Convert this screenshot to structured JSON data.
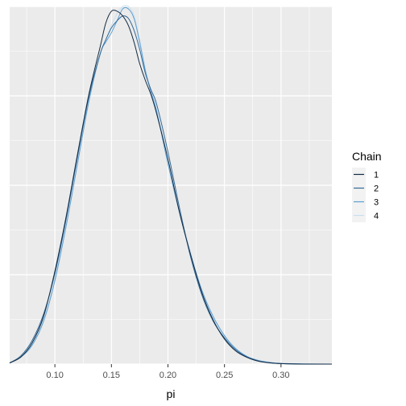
{
  "chart_data": {
    "type": "line",
    "xlabel": "pi",
    "ylabel": "",
    "xlim": [
      0.06,
      0.345
    ],
    "ylim": [
      0,
      15
    ],
    "x_ticks": [
      0.1,
      0.15,
      0.2,
      0.25,
      0.3
    ],
    "x_tick_labels": [
      "0.10",
      "0.15",
      "0.20",
      "0.25",
      "0.30"
    ],
    "y_tick_labels_shown": false,
    "grid": true,
    "legend": {
      "title": "Chain",
      "position": "right"
    },
    "series": [
      {
        "name": "1",
        "color": "#132b43",
        "x": [
          0.06,
          0.07,
          0.08,
          0.09,
          0.1,
          0.11,
          0.12,
          0.13,
          0.14,
          0.145,
          0.15,
          0.155,
          0.16,
          0.165,
          0.17,
          0.175,
          0.18,
          0.185,
          0.19,
          0.2,
          0.21,
          0.22,
          0.23,
          0.24,
          0.25,
          0.26,
          0.27,
          0.28,
          0.29,
          0.3,
          0.32,
          0.345
        ],
        "y": [
          0.05,
          0.3,
          0.9,
          2.0,
          3.9,
          6.2,
          8.8,
          11.3,
          13.3,
          14.3,
          14.8,
          14.8,
          14.6,
          14.2,
          13.5,
          12.6,
          11.9,
          11.3,
          10.5,
          8.6,
          6.4,
          4.6,
          3.0,
          1.85,
          1.05,
          0.55,
          0.28,
          0.12,
          0.05,
          0.02,
          0.0,
          0.0
        ]
      },
      {
        "name": "2",
        "color": "#336a98",
        "x": [
          0.06,
          0.07,
          0.08,
          0.09,
          0.1,
          0.11,
          0.12,
          0.13,
          0.14,
          0.145,
          0.15,
          0.155,
          0.16,
          0.165,
          0.17,
          0.175,
          0.18,
          0.185,
          0.19,
          0.2,
          0.21,
          0.22,
          0.23,
          0.24,
          0.25,
          0.26,
          0.27,
          0.28,
          0.29,
          0.3,
          0.32,
          0.345
        ],
        "y": [
          0.05,
          0.35,
          1.0,
          2.1,
          3.8,
          6.1,
          8.7,
          11.2,
          13.0,
          13.6,
          14.1,
          14.4,
          14.6,
          14.5,
          14.0,
          13.2,
          12.2,
          11.5,
          10.9,
          8.9,
          6.6,
          4.5,
          2.9,
          1.8,
          1.1,
          0.6,
          0.3,
          0.14,
          0.06,
          0.02,
          0.0,
          0.0
        ]
      },
      {
        "name": "3",
        "color": "#5d9fd3",
        "x": [
          0.06,
          0.07,
          0.08,
          0.09,
          0.1,
          0.11,
          0.12,
          0.13,
          0.14,
          0.145,
          0.15,
          0.155,
          0.16,
          0.165,
          0.17,
          0.175,
          0.18,
          0.185,
          0.19,
          0.2,
          0.21,
          0.22,
          0.23,
          0.24,
          0.25,
          0.26,
          0.27,
          0.28,
          0.29,
          0.3,
          0.32,
          0.345
        ],
        "y": [
          0.05,
          0.3,
          0.8,
          1.8,
          3.5,
          5.8,
          8.4,
          11.0,
          13.0,
          13.5,
          13.9,
          14.4,
          14.9,
          14.9,
          14.5,
          13.5,
          12.3,
          11.4,
          10.6,
          8.4,
          6.4,
          4.6,
          3.1,
          2.0,
          1.2,
          0.65,
          0.32,
          0.15,
          0.07,
          0.03,
          0.01,
          0.0
        ]
      },
      {
        "name": "4",
        "color": "#c7dff0",
        "x": [
          0.06,
          0.07,
          0.08,
          0.09,
          0.1,
          0.11,
          0.12,
          0.13,
          0.14,
          0.145,
          0.15,
          0.155,
          0.16,
          0.165,
          0.17,
          0.175,
          0.18,
          0.185,
          0.19,
          0.2,
          0.21,
          0.22,
          0.23,
          0.24,
          0.25,
          0.26,
          0.27,
          0.28,
          0.29,
          0.3,
          0.32,
          0.345
        ],
        "y": [
          0.05,
          0.3,
          0.85,
          1.9,
          3.6,
          6.0,
          8.6,
          11.1,
          13.0,
          13.6,
          14.2,
          14.7,
          15.0,
          15.0,
          14.6,
          13.6,
          12.4,
          11.5,
          10.7,
          8.6,
          6.5,
          4.7,
          3.1,
          1.95,
          1.15,
          0.65,
          0.33,
          0.17,
          0.08,
          0.03,
          0.01,
          0.0
        ]
      }
    ]
  }
}
